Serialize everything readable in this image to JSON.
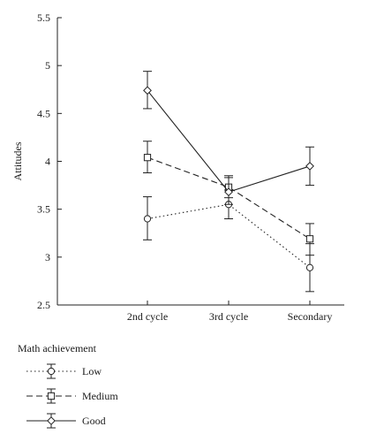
{
  "chart_data": {
    "type": "line",
    "ylabel": "Attitudes",
    "xlabel": "",
    "categories": [
      "2nd cycle",
      "3rd cycle",
      "Secondary"
    ],
    "ylim": [
      2.5,
      5.5
    ],
    "yticks": [
      "2.5",
      "3",
      "3.5",
      "4",
      "4.5",
      "5",
      "5.5"
    ],
    "grid": false,
    "legend": {
      "title": "Math achievement",
      "placement": "bottom-left"
    },
    "series": [
      {
        "name": "Low",
        "marker": "circle",
        "dash": "dotted",
        "values": [
          3.4,
          3.55,
          2.89
        ],
        "lower": [
          3.18,
          3.4,
          2.64
        ],
        "upper": [
          3.63,
          3.7,
          3.14
        ]
      },
      {
        "name": "Medium",
        "marker": "square",
        "dash": "dashed",
        "values": [
          4.04,
          3.73,
          3.19
        ],
        "lower": [
          3.88,
          3.62,
          3.02
        ],
        "upper": [
          4.21,
          3.85,
          3.35
        ]
      },
      {
        "name": "Good",
        "marker": "diamond",
        "dash": "solid",
        "values": [
          4.74,
          3.68,
          3.95
        ],
        "lower": [
          4.55,
          3.55,
          3.75
        ],
        "upper": [
          4.94,
          3.83,
          4.15
        ]
      }
    ]
  }
}
